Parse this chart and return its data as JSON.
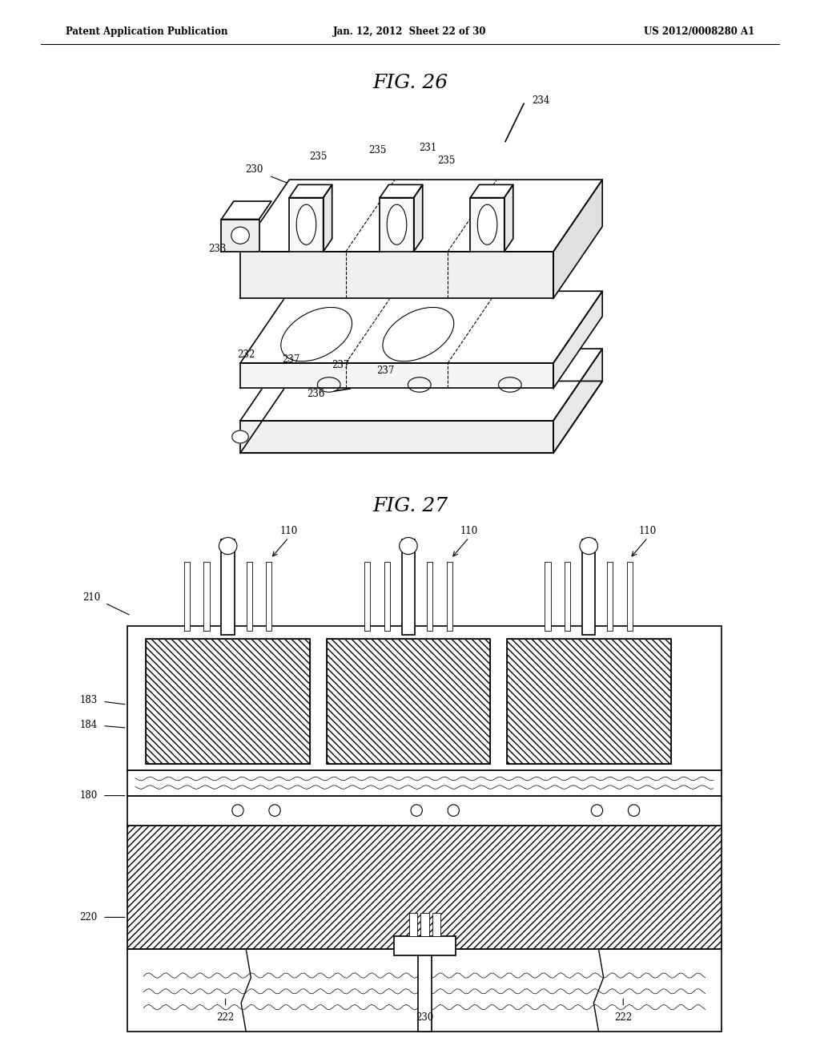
{
  "header_left": "Patent Application Publication",
  "header_center": "Jan. 12, 2012  Sheet 22 of 30",
  "header_right": "US 2012/0008280 A1",
  "fig26_title": "FIG. 26",
  "fig27_title": "FIG. 27",
  "bg_color": "#ffffff",
  "line_color": "#000000"
}
